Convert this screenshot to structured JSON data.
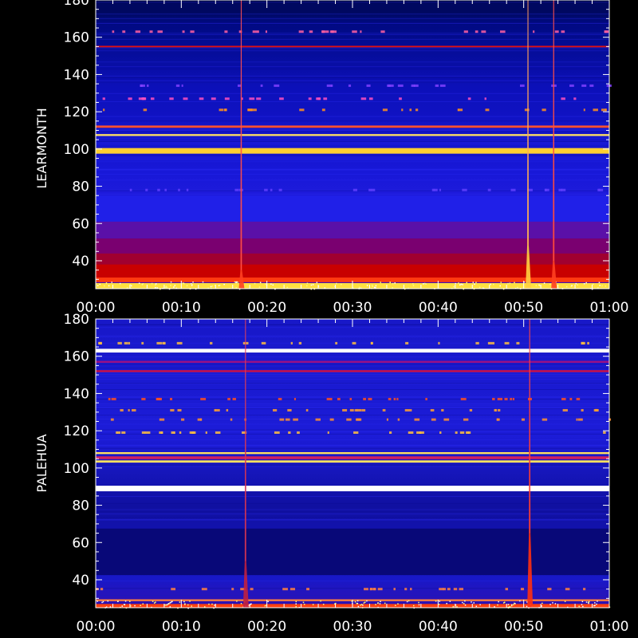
{
  "chart_data": [
    {
      "type": "heatmap",
      "ylabel": "LEARMONTH",
      "ylim": [
        25,
        180
      ],
      "yticks": [
        40,
        60,
        80,
        100,
        120,
        140,
        160,
        180
      ],
      "xlim": [
        "00:00",
        "01:00"
      ],
      "xticks": [
        "00:00",
        "00:10",
        "00:20",
        "00:30",
        "00:40",
        "00:50",
        "01:00"
      ],
      "background_color": "#1010c8",
      "bands": [
        {
          "y": 26.5,
          "h": 3,
          "color": "#ffe040"
        },
        {
          "y": 30,
          "h": 3,
          "color": "#ff3a10"
        },
        {
          "y": 35,
          "h": 8,
          "color": "#c80000"
        },
        {
          "y": 41,
          "h": 6,
          "color": "#a00030"
        },
        {
          "y": 48,
          "h": 8,
          "color": "#7a0070"
        },
        {
          "y": 57,
          "h": 10,
          "color": "#5a10a8"
        },
        {
          "y": 68,
          "h": 14,
          "color": "#2020e8"
        },
        {
          "y": 99,
          "h": 3,
          "color": "#ffd030"
        },
        {
          "y": 107.5,
          "h": 1,
          "color": "#ffe060"
        },
        {
          "y": 112,
          "h": 1.2,
          "color": "#ff5030"
        },
        {
          "y": 155,
          "h": 0.8,
          "color": "#e01010"
        },
        {
          "y": 176,
          "h": 5,
          "color": "#000860"
        }
      ],
      "spikes": [
        {
          "t": 50.5,
          "y_top": 48,
          "color": "#ffd040"
        },
        {
          "t": 17,
          "y_top": 35,
          "color": "#ff4020"
        },
        {
          "t": 53.5,
          "y_top": 40,
          "color": "#ff4020"
        }
      ],
      "speckle_rows": [
        {
          "y": 163,
          "color": "#ff60a0"
        },
        {
          "y": 134,
          "color": "#8040ff"
        },
        {
          "y": 127,
          "color": "#ff50c0"
        },
        {
          "y": 121,
          "color": "#ff9020"
        },
        {
          "y": 78,
          "color": "#6040ff"
        }
      ]
    },
    {
      "type": "heatmap",
      "ylabel": "PALEHUA",
      "ylim": [
        25,
        180
      ],
      "yticks": [
        40,
        60,
        80,
        100,
        120,
        140,
        160,
        180
      ],
      "xlim": [
        "00:00",
        "01:00"
      ],
      "xticks": [
        "00:00",
        "00:10",
        "00:20",
        "00:30",
        "00:40",
        "00:50",
        "01:00"
      ],
      "background_color": "#1818d0",
      "bands": [
        {
          "y": 26,
          "h": 2,
          "color": "#ff4010"
        },
        {
          "y": 29,
          "h": 1,
          "color": "#ff8040"
        },
        {
          "y": 55,
          "h": 25,
          "color": "#080878"
        },
        {
          "y": 89,
          "h": 3,
          "color": "#ffffff"
        },
        {
          "y": 103.5,
          "h": 1.2,
          "color": "#ffe060"
        },
        {
          "y": 105.5,
          "h": 1.5,
          "color": "#d02060"
        },
        {
          "y": 108,
          "h": 1,
          "color": "#ffe060"
        },
        {
          "y": 152,
          "h": 1,
          "color": "#d01040"
        },
        {
          "y": 157,
          "h": 1,
          "color": "#a01080"
        },
        {
          "y": 163,
          "h": 2,
          "color": "#ffffff"
        }
      ],
      "spikes": [
        {
          "t": 50.7,
          "y_top": 65,
          "color": "#ff3010"
        },
        {
          "t": 17.5,
          "y_top": 50,
          "color": "#c02040"
        }
      ],
      "speckle_rows": [
        {
          "y": 137,
          "color": "#ff5020"
        },
        {
          "y": 131,
          "color": "#ffa030"
        },
        {
          "y": 126,
          "color": "#ff9030"
        },
        {
          "y": 119,
          "color": "#ffc040"
        },
        {
          "y": 167,
          "color": "#ffc040"
        },
        {
          "y": 35,
          "color": "#ff8040"
        }
      ]
    }
  ]
}
